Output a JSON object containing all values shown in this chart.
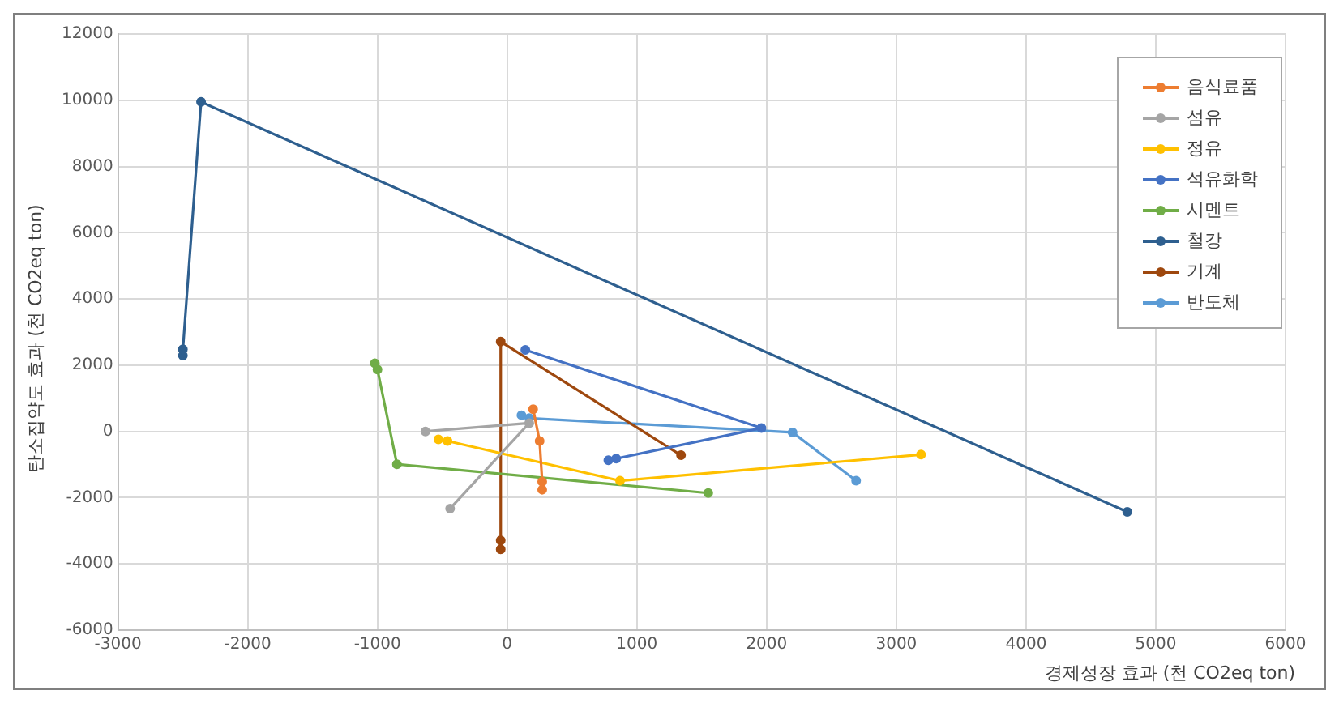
{
  "chart_data": {
    "type": "line",
    "xlabel": "경제성장 효과 (천 CO2eq ton)",
    "ylabel": "탄소집약도 효과 (천 CO2eq ton)",
    "xlim": [
      -3000,
      6000
    ],
    "xticks": [
      -3000,
      -2000,
      -1000,
      0,
      1000,
      2000,
      3000,
      4000,
      5000,
      6000
    ],
    "ylim": [
      -6000,
      12000
    ],
    "yticks": [
      -6000,
      -4000,
      -2000,
      0,
      2000,
      4000,
      6000,
      8000,
      10000,
      12000
    ],
    "grid": true,
    "legend": "top right",
    "marker": "circle",
    "line_style": "solid",
    "series": [
      {
        "name": "음식료품",
        "color": "#ed7d31",
        "x": [
          200,
          250,
          270,
          270
        ],
        "values": [
          670,
          -290,
          -1520,
          -1760
        ]
      },
      {
        "name": "섬유",
        "color": "#a5a5a5",
        "x": [
          -630,
          170,
          -440
        ],
        "values": [
          0,
          250,
          -2330
        ]
      },
      {
        "name": "정유",
        "color": "#ffc000",
        "x": [
          -530,
          -460,
          870,
          3190
        ],
        "values": [
          -240,
          -290,
          -1490,
          -700
        ]
      },
      {
        "name": "석유화학",
        "color": "#4472c4",
        "x": [
          140,
          1960,
          840,
          780
        ],
        "values": [
          2460,
          100,
          -820,
          -870
        ]
      },
      {
        "name": "시멘트",
        "color": "#70ad47",
        "x": [
          -1020,
          -1000,
          -850,
          1550
        ],
        "values": [
          2060,
          1870,
          -990,
          -1860
        ]
      },
      {
        "name": "철강",
        "color": "#2e5f8f",
        "x": [
          -2500,
          -2500,
          -2360,
          4780
        ],
        "values": [
          2290,
          2480,
          9950,
          -2430
        ]
      },
      {
        "name": "기계",
        "color": "#9e480e",
        "x": [
          1340,
          -50,
          -50,
          -50
        ],
        "values": [
          -720,
          2710,
          -3290,
          -3560
        ]
      },
      {
        "name": "반도체",
        "color": "#5b9bd5",
        "x": [
          110,
          170,
          2200,
          2690
        ],
        "values": [
          490,
          400,
          -30,
          -1490
        ]
      }
    ]
  }
}
